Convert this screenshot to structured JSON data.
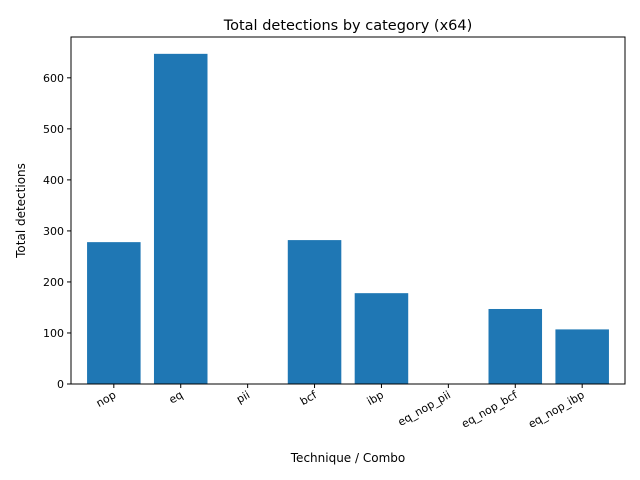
{
  "chart_data": {
    "type": "bar",
    "title": "Total detections by category (x64)",
    "xlabel": "Technique / Combo",
    "ylabel": "Total detections",
    "categories": [
      "nop",
      "eq",
      "pii",
      "bcf",
      "ibp",
      "eq_nop_pii",
      "eq_nop_bcf",
      "eq_nop_ibp"
    ],
    "values": [
      278,
      647,
      0,
      282,
      178,
      0,
      147,
      107
    ],
    "ylim": [
      0,
      680
    ],
    "yticks": [
      0,
      100,
      200,
      300,
      400,
      500,
      600
    ],
    "bar_color": "#1f77b4",
    "grid": false,
    "legend": "none"
  }
}
